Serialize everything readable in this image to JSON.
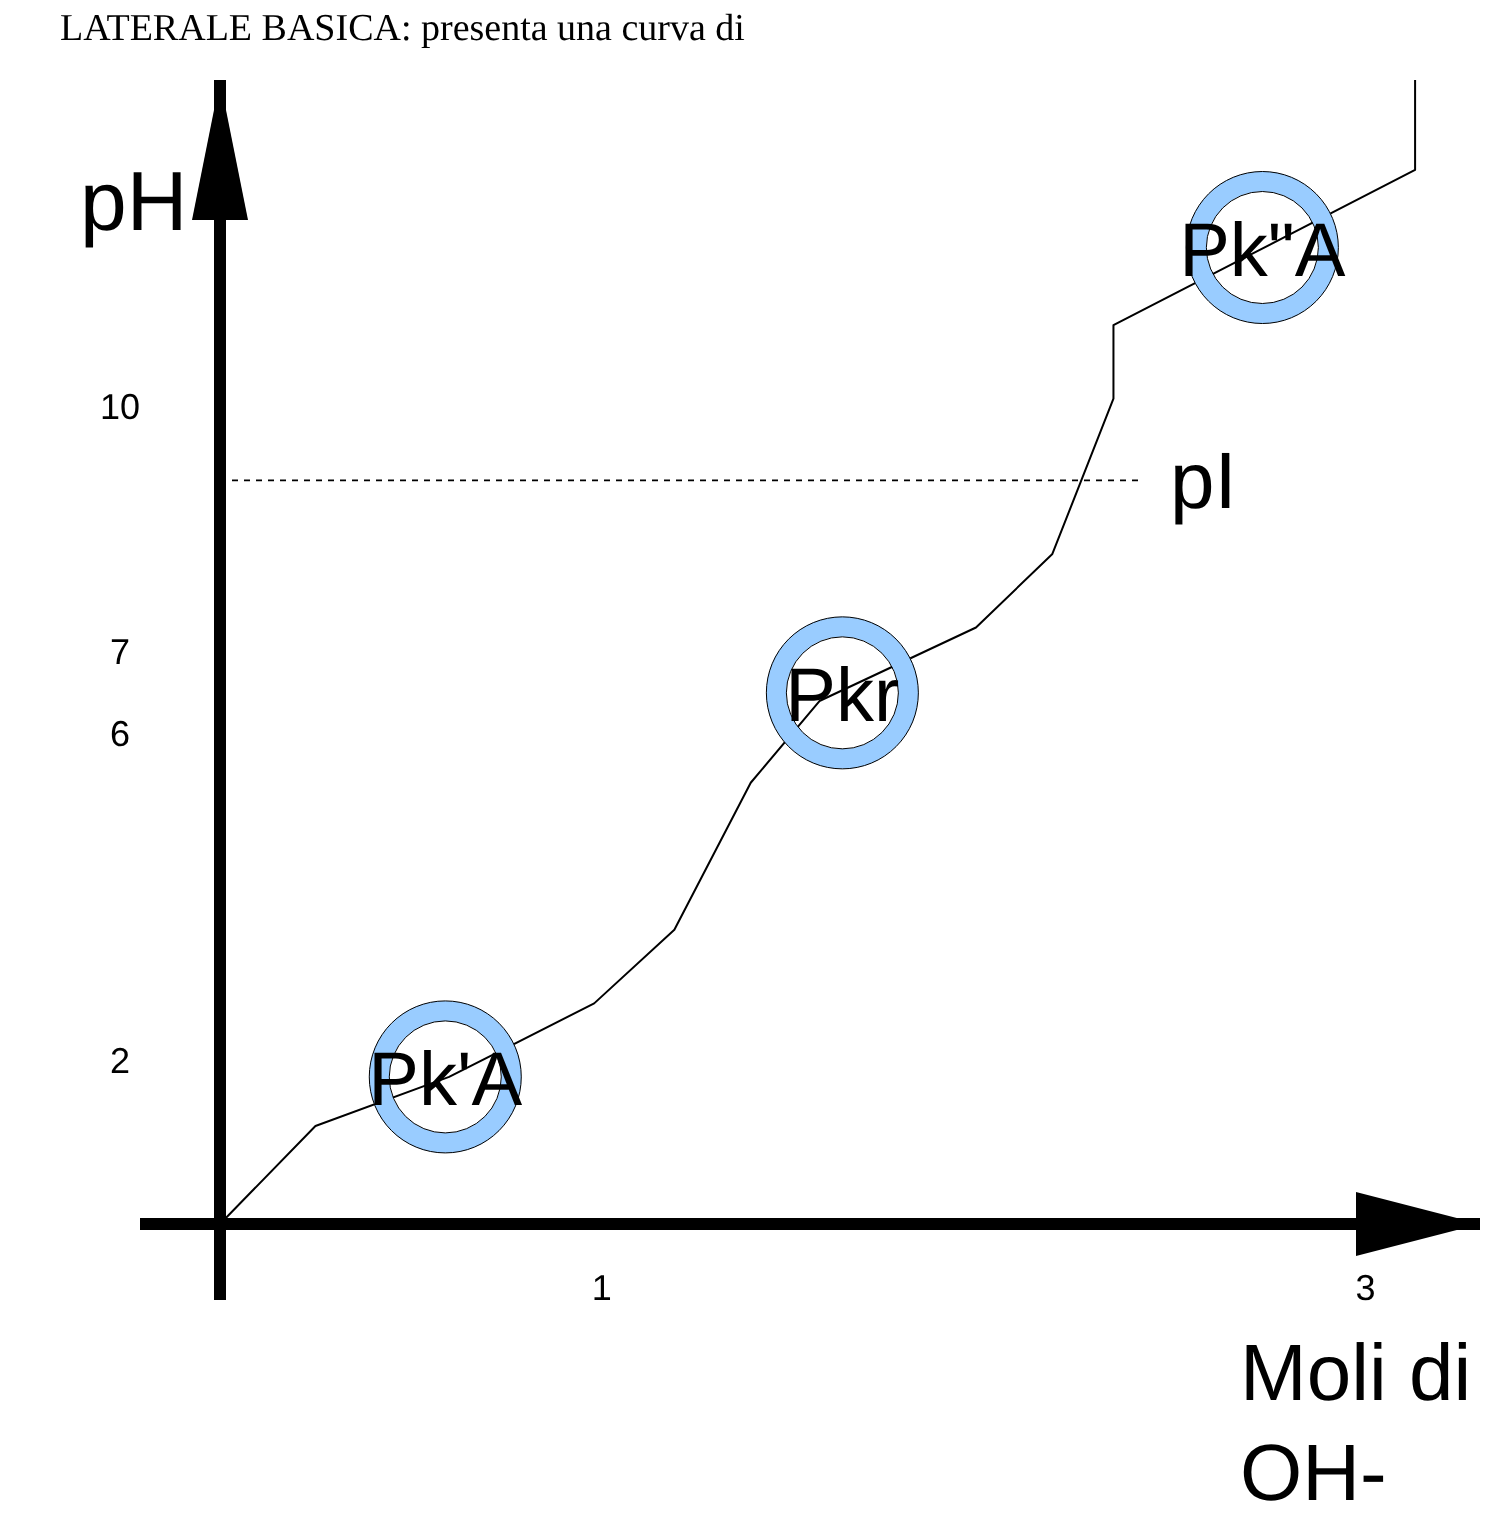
{
  "chart_data": {
    "type": "line",
    "title": "LATERALE BASICA: presenta una curva di",
    "xlabel": "Moli di OH-",
    "ylabel": "pH",
    "xlim": [
      0,
      3.3
    ],
    "ylim": [
      0,
      14
    ],
    "xticks": [
      1,
      3
    ],
    "yticks": [
      2,
      6,
      7,
      10
    ],
    "series": [
      {
        "color": "#000000",
        "x": [
          0,
          0.25,
          0.6,
          0.98,
          1.19,
          1.39,
          1.57,
          1.98,
          2.18,
          2.34,
          2.34,
          3.13,
          3.13
        ],
        "values": [
          0,
          1.2,
          1.8,
          2.7,
          3.6,
          5.4,
          6.4,
          7.3,
          8.2,
          10.1,
          11.0,
          12.9,
          14
        ]
      }
    ],
    "ref_lines": [
      {
        "axis": "y",
        "value": 9.1,
        "label": "pI",
        "line_style": "dashed",
        "color": "#000000"
      }
    ],
    "annotations": [
      {
        "text": "Pk'A",
        "x": 0.59,
        "y": 1.8
      },
      {
        "text": "Pkr",
        "x": 1.63,
        "y": 6.5
      },
      {
        "text": "Pk\"A",
        "x": 2.73,
        "y": 11.95
      }
    ],
    "grid": false,
    "line_style": "solid"
  }
}
